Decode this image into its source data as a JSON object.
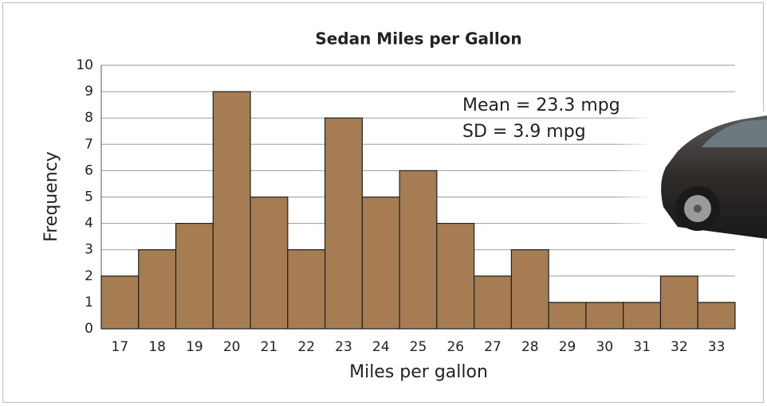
{
  "chart_data": {
    "type": "bar",
    "title": "Sedan Miles per Gallon",
    "x_label": "Miles per gallon",
    "y_label": "Frequency",
    "categories": [
      "17",
      "18",
      "19",
      "20",
      "21",
      "22",
      "23",
      "24",
      "25",
      "26",
      "27",
      "28",
      "29",
      "30",
      "31",
      "32",
      "33"
    ],
    "values": [
      2,
      3,
      4,
      9,
      5,
      3,
      8,
      5,
      6,
      4,
      2,
      3,
      1,
      1,
      1,
      2,
      1
    ],
    "color": "#a67c52",
    "ylim": [
      0,
      10
    ],
    "yticks": [
      0,
      1,
      2,
      3,
      4,
      5,
      6,
      7,
      8,
      9,
      10
    ],
    "grid": true,
    "annotations": [
      "Mean = 23.3 mpg",
      "SD = 3.9 mpg"
    ]
  }
}
